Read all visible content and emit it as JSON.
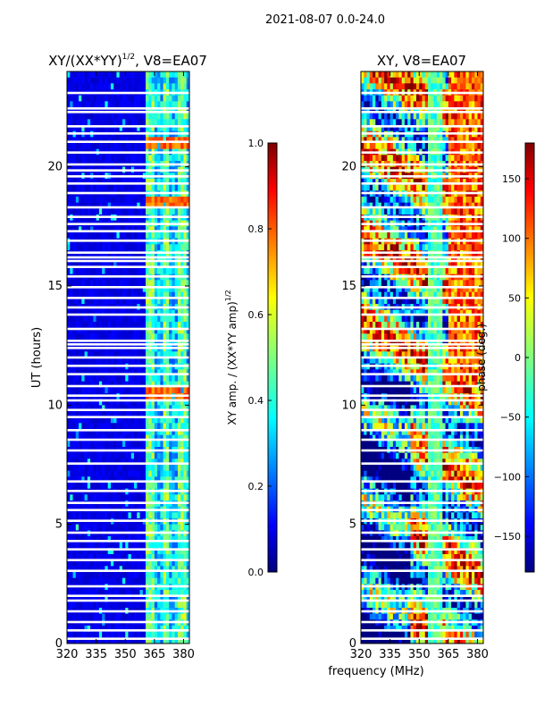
{
  "figure_title": "2021-08-07 0.0-24.0",
  "chart_data": [
    {
      "type": "heatmap",
      "title": "XY/(XX*YY)^1/2, V8=EA07",
      "title_main": "XY/(XX*YY)",
      "title_exponent": "1/2",
      "title_suffix": ", V8=EA07",
      "xlabel": "frequency (MHz)",
      "ylabel": "UT (hours)",
      "xlim": [
        320,
        383
      ],
      "ylim": [
        0,
        24
      ],
      "xticks": [
        320,
        335,
        350,
        365,
        380
      ],
      "yticks": [
        0,
        5,
        10,
        15,
        20
      ],
      "colorbar": {
        "label_main": "XY amp. / (XX*YY amp)",
        "label_exponent": "1/2",
        "range": [
          0.0,
          1.0
        ],
        "ticks": [
          "0.0",
          "0.2",
          "0.4",
          "0.6",
          "0.8",
          "1.0"
        ],
        "tick_values": [
          0.0,
          0.2,
          0.4,
          0.6,
          0.8,
          1.0
        ]
      }
    },
    {
      "type": "heatmap",
      "title": "XY, V8=EA07",
      "xlabel": "frequency (MHz)",
      "ylabel": "",
      "xlim": [
        320,
        383
      ],
      "ylim": [
        0,
        24
      ],
      "xticks": [
        320,
        335,
        350,
        365,
        380
      ],
      "yticks": [
        0,
        5,
        10,
        15,
        20
      ],
      "colorbar": {
        "label": "phase (deg.)",
        "range": [
          -180,
          180
        ],
        "ticks": [
          "150",
          "100",
          "50",
          "0",
          "−50",
          "−100",
          "−150"
        ],
        "tick_values": [
          150,
          100,
          50,
          0,
          -50,
          -100,
          -150
        ]
      }
    }
  ],
  "flagged_hours": [
    0.2,
    0.55,
    0.9,
    1.35,
    1.8,
    2.0,
    2.4,
    3.05,
    3.5,
    3.95,
    4.3,
    4.65,
    5.15,
    5.6,
    5.9,
    6.4,
    6.8,
    7.55,
    8.1,
    8.55,
    8.95,
    9.5,
    9.8,
    10.2,
    10.4,
    10.8,
    11.3,
    11.65,
    12.0,
    12.4,
    12.55,
    12.7,
    13.2,
    13.8,
    14.1,
    14.5,
    14.95,
    15.4,
    15.8,
    16.05,
    16.2,
    16.4,
    16.9,
    17.3,
    17.6,
    17.9,
    18.3,
    18.9,
    19.3,
    19.6,
    19.85,
    20.1,
    20.6,
    21.05,
    21.4,
    21.7,
    22.3,
    22.45,
    23.1
  ],
  "colors": {
    "jet_dark_blue": "#00007f",
    "jet_blue": "#0000ff",
    "jet_cyan": "#00ffff",
    "jet_yellow": "#ffff00",
    "jet_red": "#ff0000",
    "jet_dark_red": "#7f0000"
  }
}
